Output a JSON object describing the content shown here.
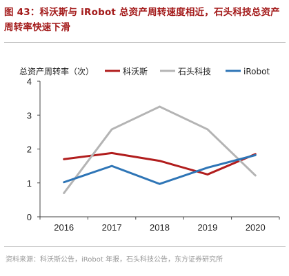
{
  "figure": {
    "title": "图 43：科沃斯与 iRobot 总资产周转速度相近，石头科技总资产周转率快速下滑",
    "source": "资料来源：科沃斯公告，iRobot 年报，石头科技公告，东方证券研究所"
  },
  "chart_data": {
    "type": "line",
    "ylabel": "总资产周转率（次）",
    "categories": [
      "2016",
      "2017",
      "2018",
      "2019",
      "2020"
    ],
    "ylim": [
      0,
      4
    ],
    "yticks": [
      0,
      1,
      2,
      3,
      4
    ],
    "grid": false,
    "legend_position": "top",
    "series": [
      {
        "name": "科沃斯",
        "color": "#b11d1d",
        "values": [
          1.7,
          1.88,
          1.65,
          1.25,
          1.85
        ]
      },
      {
        "name": "石头科技",
        "color": "#b4b4b4",
        "values": [
          0.7,
          2.58,
          3.25,
          2.58,
          1.22
        ]
      },
      {
        "name": "iRobot",
        "color": "#2e75b6",
        "values": [
          1.02,
          1.5,
          0.97,
          1.45,
          1.82
        ]
      }
    ]
  }
}
